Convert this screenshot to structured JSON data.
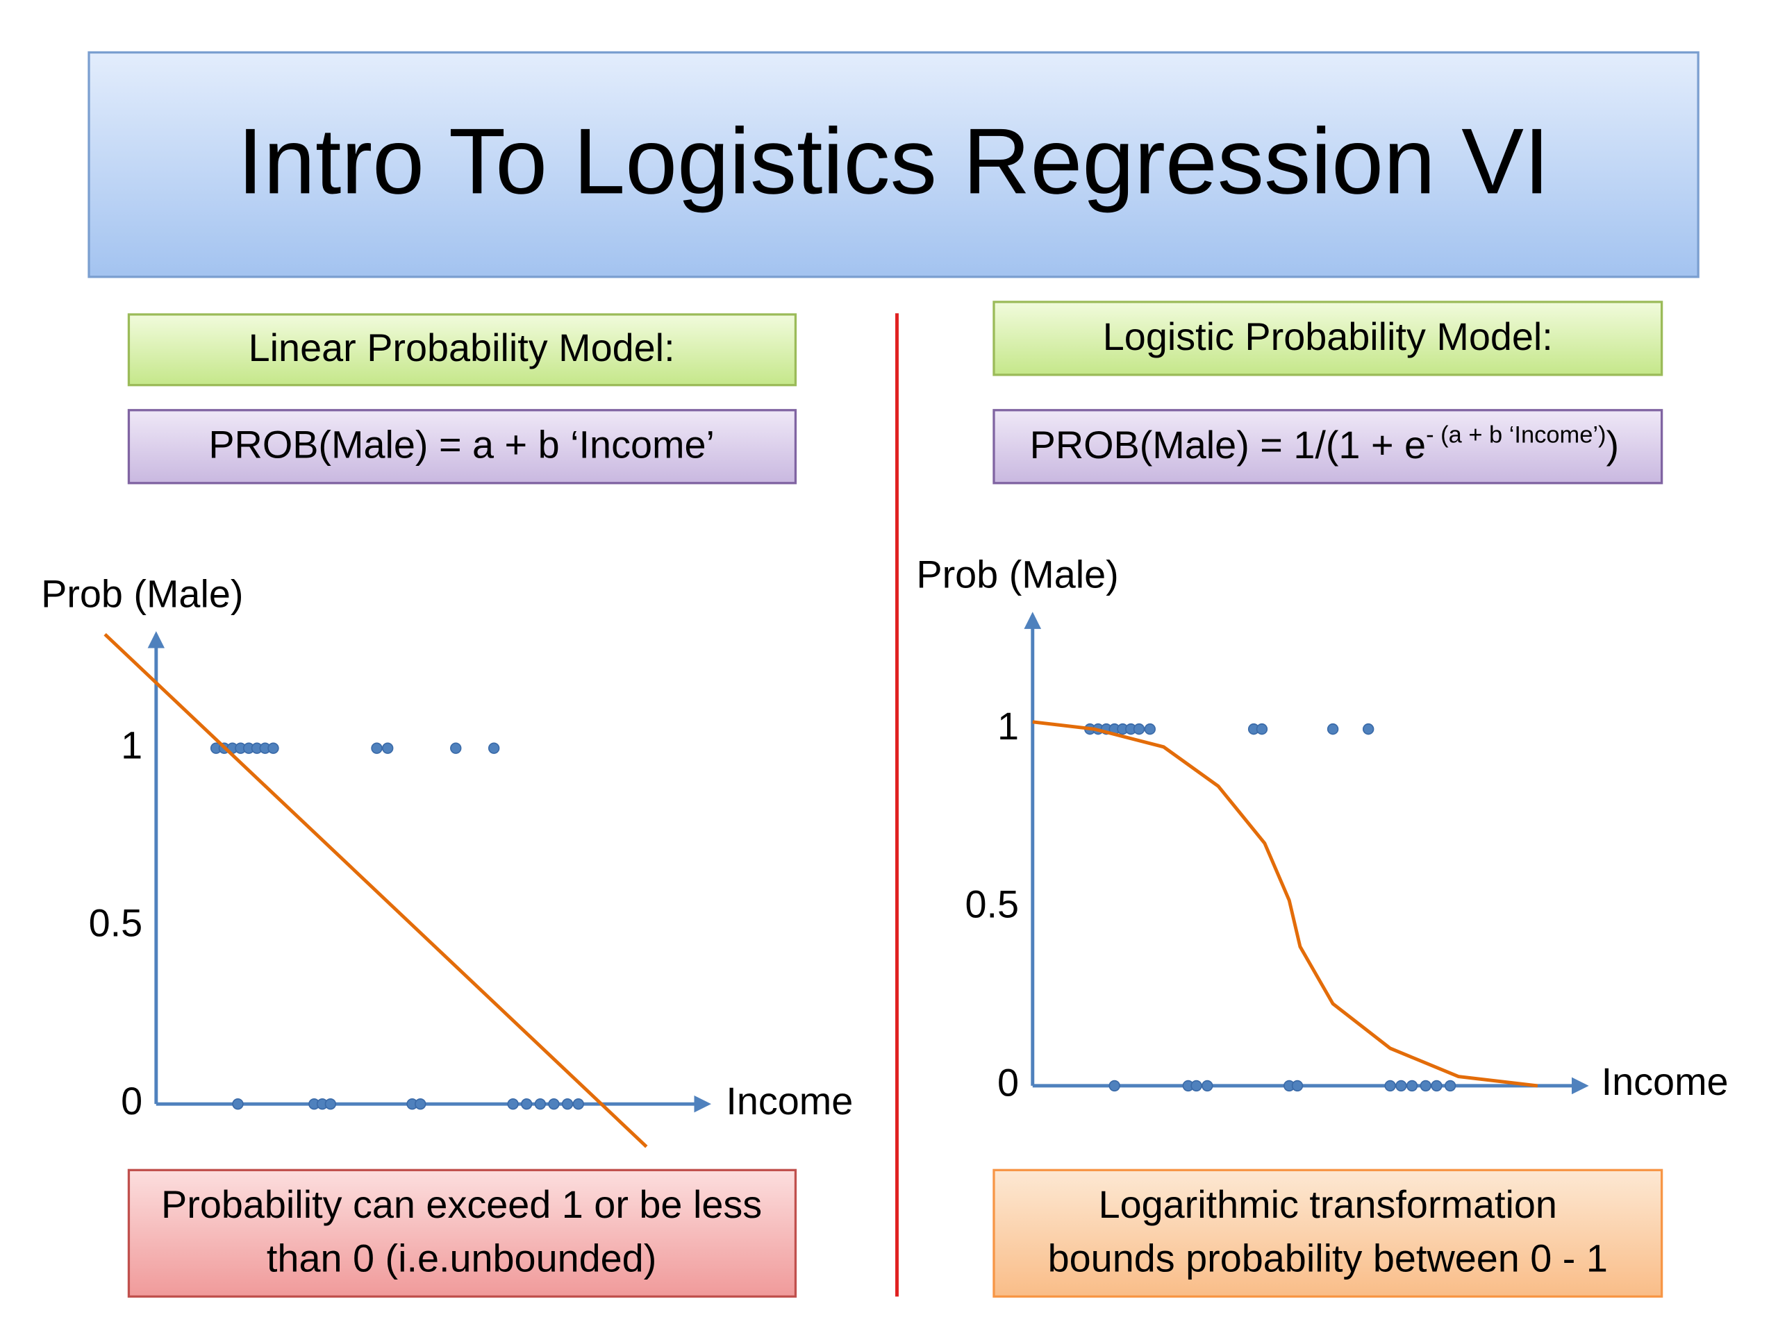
{
  "title": "Intro To Logistics Regression VI",
  "left": {
    "heading": "Linear Probability Model:",
    "formula": "PROB(Male) = a + b ‘Income’",
    "note_lines": [
      "Probability can exceed 1 or be less",
      "than 0 (i.e.unbounded)"
    ]
  },
  "right": {
    "heading": "Logistic Probability Model:",
    "formula": {
      "text": "PROB(Male) = 1/(1 + e",
      "exponent": "- (a + b ‘Income’)",
      "close": ")"
    },
    "note_lines": [
      "Logarithmic transformation",
      "bounds probability between 0 - 1"
    ]
  },
  "chart_data": [
    {
      "type": "scatter",
      "y_label": "Prob (Male)",
      "x_label": "Income",
      "xlim": [
        0,
        10
      ],
      "ylim": [
        0,
        1.3
      ],
      "yticks": [
        0,
        0.5,
        1
      ],
      "series": [
        {
          "type": "scatter",
          "color": "#4f81bd",
          "x": [
            1.1,
            1.25,
            1.4,
            1.55,
            1.7,
            1.85,
            2.0,
            2.15,
            4.05,
            4.25,
            5.5,
            6.2,
            1.5,
            2.9,
            3.05,
            3.2,
            4.7,
            4.85,
            6.55,
            6.8,
            7.05,
            7.3,
            7.55,
            7.75
          ],
          "values": [
            1,
            1,
            1,
            1,
            1,
            1,
            1,
            1,
            1,
            1,
            1,
            1,
            0,
            0,
            0,
            0,
            0,
            0,
            0,
            0,
            0,
            0,
            0,
            0
          ]
        },
        {
          "type": "line",
          "color": "#e36c09",
          "x": [
            -0.94,
            9.0
          ],
          "values": [
            1.32,
            -0.12
          ]
        }
      ]
    },
    {
      "type": "scatter",
      "y_label": "Prob (Male)",
      "x_label": "Income",
      "xlim": [
        0,
        10
      ],
      "ylim": [
        0,
        1.3
      ],
      "yticks": [
        0,
        0.5,
        1
      ],
      "series": [
        {
          "type": "scatter",
          "color": "#4f81bd",
          "x": [
            1.05,
            1.2,
            1.35,
            1.5,
            1.65,
            1.8,
            1.95,
            2.15,
            4.05,
            4.2,
            5.5,
            6.15,
            1.5,
            2.85,
            3.0,
            3.2,
            4.7,
            4.85,
            6.55,
            6.75,
            6.95,
            7.2,
            7.4,
            7.65
          ],
          "values": [
            1,
            1,
            1,
            1,
            1,
            1,
            1,
            1,
            1,
            1,
            1,
            1,
            0,
            0,
            0,
            0,
            0,
            0,
            0,
            0,
            0,
            0,
            0,
            0
          ]
        },
        {
          "type": "line",
          "color": "#e36c09",
          "x": [
            0,
            1.13,
            2.4,
            3.4,
            4.25,
            4.7,
            4.9,
            5.5,
            6.55,
            7.8,
            9.25
          ],
          "values": [
            1.02,
            1.0,
            0.95,
            0.84,
            0.68,
            0.52,
            0.39,
            0.23,
            0.105,
            0.026,
            0
          ]
        }
      ]
    }
  ]
}
